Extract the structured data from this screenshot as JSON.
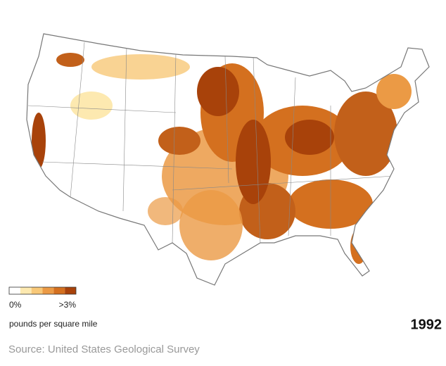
{
  "map": {
    "legend": {
      "colors": [
        "#ffffff",
        "#fde9b0",
        "#f8c878",
        "#eb9a45",
        "#d4701f",
        "#a8420a"
      ],
      "min_label": "0%",
      "max_label": ">3%",
      "unit": "pounds per square mile"
    },
    "year": "1992",
    "source": "Source: United States Geological Survey"
  }
}
